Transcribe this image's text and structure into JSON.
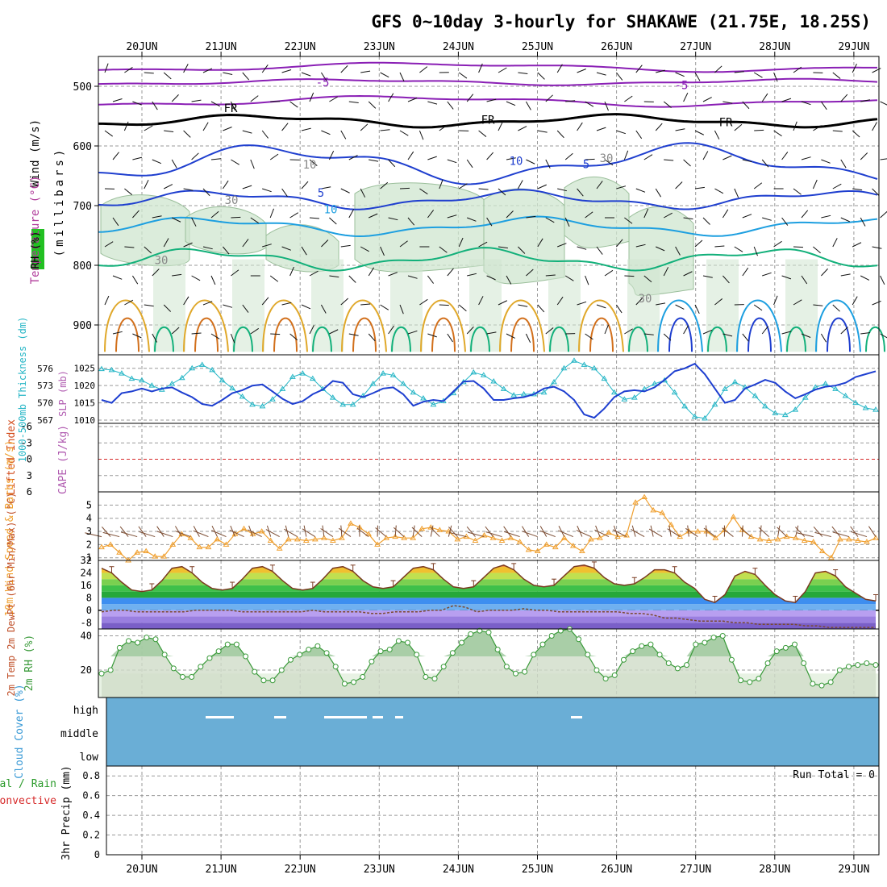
{
  "title": "GFS 0~10day 3-hourly for SHAKAWE (21.75E, 18.25S)",
  "dates": [
    "20JUN",
    "21JUN",
    "22JUN",
    "23JUN",
    "24JUN",
    "25JUN",
    "26JUN",
    "27JUN",
    "28JUN",
    "29JUN"
  ],
  "colors": {
    "temp_purple": "#8a1fb5",
    "temp_black": "#000000",
    "temp_blue": "#1f3fcf",
    "temp_lightblue": "#1d9fe0",
    "temp_green": "#12b07a",
    "temp_orange": "#e0a82a",
    "temp_darkorange": "#d2701c",
    "rh_fill": "#cfe6cf",
    "thickness": "#1e3fd0",
    "slp": "#26b6c6",
    "wind10": "#f0a030",
    "barb": "#7a4a30",
    "cloud": "#6aaed6",
    "rh2m": "#3a9a3a",
    "dewpt": "#7a4a30",
    "precip_total": "#2a9a2a",
    "precip_conv": "#d62828",
    "lifted_index_zero": "#d62828"
  },
  "chart_data": [
    {
      "panel": "upper_air",
      "type": "heatmap",
      "ylabel_parts": [
        "Wind (m/s)",
        "Temperature (°C)",
        "RH (%)",
        "(millibars)"
      ],
      "y_ticks": [
        500,
        600,
        700,
        800,
        900
      ],
      "ylim": [
        950,
        450
      ],
      "contour_labels": [
        "-5",
        "-5",
        "FR",
        "FR",
        "FR",
        "5",
        "5",
        "10",
        "10",
        "10",
        "30",
        "30",
        "30",
        "30"
      ]
    },
    {
      "panel": "thickness_slp",
      "type": "line",
      "ylabel_left": "1000-500mb Thickness (dm)",
      "ylabel_right": "SLP (mb)",
      "left_ticks": [
        567,
        570,
        573,
        576
      ],
      "right_ticks": [
        1010,
        1015,
        1020,
        1025
      ],
      "series": [
        {
          "name": "SLP",
          "values": [
            1024.8,
            1024.5,
            1023.5,
            1022,
            1021.5,
            1020,
            1018.8,
            1020.5,
            1022.2,
            1025,
            1026,
            1024.5,
            1021.5,
            1019.2,
            1016.8,
            1014.5,
            1014,
            1016,
            1019,
            1022.5,
            1023.5,
            1022,
            1019,
            1016.5,
            1014.5,
            1014.5,
            1017,
            1020.5,
            1023.5,
            1023,
            1020.5,
            1018,
            1016.3,
            1014.5,
            1015.5,
            1017.8,
            1021,
            1023.8,
            1023,
            1021.2,
            1019,
            1017.2,
            1017.5,
            1017.5,
            1018,
            1021,
            1025,
            1027.2,
            1026,
            1025,
            1022,
            1018,
            1016,
            1016.5,
            1019,
            1020.5,
            1021.5,
            1018,
            1014,
            1011,
            1010.5,
            1014.5,
            1019,
            1021,
            1019.5,
            1017,
            1014,
            1012,
            1011.5,
            1013,
            1016.5,
            1019.5,
            1020.5,
            1019,
            1017,
            1015,
            1013.5,
            1013
          ]
        },
        {
          "name": "1000-500mb Thickness",
          "values": [
            570.5,
            570,
            571.7,
            572,
            572.5,
            572,
            572.5,
            572.7,
            571.8,
            571,
            569.8,
            569.5,
            570.5,
            571.7,
            572.2,
            573,
            573.2,
            572,
            570.7,
            569.8,
            570.3,
            571.5,
            572.3,
            573.8,
            573.5,
            571.5,
            571,
            571.7,
            572.5,
            572.7,
            571.5,
            569.5,
            570.2,
            570.5,
            570.3,
            572,
            573.7,
            573.8,
            572.5,
            570.5,
            570.5,
            570.8,
            571,
            571.5,
            572.5,
            572.8,
            572,
            570.5,
            568,
            567.4,
            569,
            571,
            572,
            572.2,
            572,
            572.7,
            574,
            575.5,
            576,
            576.8,
            575,
            572.5,
            570,
            570.5,
            572.5,
            573.2,
            574,
            573.5,
            572,
            570.8,
            571.5,
            572.3,
            572.8,
            573,
            573.5,
            574.5,
            575,
            575.5
          ]
        }
      ]
    },
    {
      "panel": "lifted_index_cape",
      "type": "line",
      "ylabel_left": "Lifted Index",
      "ylabel_right": "CAPE (J/kg)",
      "y_ticks": [
        6,
        3,
        0,
        -3,
        -6
      ],
      "series": []
    },
    {
      "panel": "wind10m",
      "type": "line",
      "ylabel": "10m Wind Speed & Barbs (m/s)",
      "y_ticks": [
        1,
        2,
        3,
        4,
        5
      ],
      "ylim": [
        0.8,
        6
      ],
      "series": [
        {
          "name": "10m Wind Speed",
          "values": [
            1.8,
            2,
            1.4,
            0.8,
            1.4,
            1.5,
            1.1,
            1.1,
            2,
            2.8,
            2.5,
            1.8,
            1.8,
            2.4,
            2,
            2.8,
            3.2,
            2.8,
            3,
            2.3,
            1.7,
            2.4,
            2.4,
            2.3,
            2.4,
            2.5,
            2.3,
            2.5,
            3.6,
            3.3,
            2.8,
            2,
            2.5,
            2.6,
            2.5,
            2.5,
            3.2,
            3.3,
            3.1,
            3,
            2.4,
            2.6,
            2.3,
            2.7,
            2.5,
            2.3,
            2.5,
            2.2,
            1.6,
            1.5,
            2,
            1.8,
            2.5,
            1.9,
            1.5,
            2.4,
            2.5,
            2.9,
            2.6,
            2.7,
            5.2,
            5.6,
            4.6,
            4.4,
            3.5,
            2.6,
            3,
            3,
            3,
            2.5,
            3.1,
            4.1,
            3.1,
            2.6,
            2.4,
            2.3,
            2.4,
            2.6,
            2.5,
            2.3,
            2.2,
            1.5,
            1,
            2.4,
            2.4,
            2.3,
            2.2,
            2.5
          ]
        }
      ]
    },
    {
      "panel": "temp2m",
      "type": "area",
      "ylabel": "2m Temp 2m DewPt (6hr Min/Max) (°C)",
      "y_ticks": [
        -8,
        0,
        8,
        16,
        24,
        32
      ],
      "ylim": [
        -12,
        32
      ],
      "series": [
        {
          "name": "2m Temp",
          "values": [
            27,
            24,
            18,
            13,
            12,
            13,
            19,
            27,
            28,
            24,
            18,
            14,
            13,
            14,
            20,
            27,
            28,
            25,
            19,
            14,
            13,
            14,
            20,
            27,
            28,
            25,
            19,
            15,
            14,
            15,
            21,
            27,
            28,
            26,
            20,
            15,
            14,
            15,
            21,
            27,
            29,
            26,
            20,
            16,
            15,
            16,
            22,
            28,
            29,
            27,
            21,
            17,
            16,
            17,
            21,
            26,
            26,
            24,
            18,
            14,
            7,
            5,
            10,
            22,
            25,
            23,
            16,
            10,
            6,
            5,
            12,
            24,
            25,
            22,
            15,
            11,
            7,
            6
          ]
        },
        {
          "name": "2m DewPt",
          "values": [
            -1,
            0,
            0,
            -1,
            -1,
            -1,
            -1,
            -1,
            0,
            0,
            0,
            0,
            -1,
            -1,
            -1,
            -1,
            -1,
            -1,
            0,
            -1,
            -1,
            -1,
            -1,
            -2,
            -2,
            -1,
            -1,
            -1,
            0,
            0,
            3,
            2,
            -1,
            0,
            0,
            0,
            1,
            0,
            0,
            -1,
            -1,
            -1,
            -1,
            -1,
            -1,
            -2,
            -2,
            -3,
            -5,
            -5,
            -6,
            -7,
            -7,
            -7,
            -8,
            -8,
            -9,
            -9,
            -9,
            -9,
            -10,
            -10,
            -11,
            -11,
            -11,
            -11,
            -11
          ]
        }
      ]
    },
    {
      "panel": "rh2m",
      "type": "area",
      "ylabel": "2m RH (%)",
      "y_ticks": [
        20,
        40
      ],
      "ylim": [
        4,
        44
      ],
      "series": [
        {
          "name": "2m RH",
          "values": [
            18,
            20,
            33,
            37,
            36,
            39,
            38,
            29,
            21,
            16,
            16,
            22,
            27,
            31,
            35,
            35,
            28,
            19,
            14,
            14,
            20,
            26,
            29,
            32,
            34,
            30,
            22,
            12,
            13,
            16,
            25,
            31,
            32,
            37,
            36,
            29,
            16,
            15,
            22,
            30,
            36,
            41,
            43,
            42,
            32,
            22,
            18,
            19,
            29,
            35,
            40,
            43,
            44,
            38,
            29,
            20,
            15,
            17,
            26,
            31,
            34,
            35,
            29,
            24,
            21,
            23,
            35,
            36,
            39,
            40,
            26,
            14,
            13,
            15,
            24,
            31,
            33,
            35,
            24,
            12,
            11,
            13,
            20,
            22,
            23,
            24,
            23
          ]
        }
      ]
    },
    {
      "panel": "cloud",
      "type": "heatmap",
      "ylabel": "Cloud Cover (%)",
      "y_ticks": [
        "high",
        "middle",
        "low"
      ]
    },
    {
      "panel": "precip",
      "type": "bar",
      "ylabel": "3hr Precip (mm)",
      "legend": [
        "Total / Rain",
        "Convective"
      ],
      "y_ticks": [
        0,
        0.2,
        0.4,
        0.6,
        0.8
      ],
      "ylim": [
        0,
        0.9
      ],
      "annotation": "Run Total = 0",
      "values": []
    }
  ]
}
